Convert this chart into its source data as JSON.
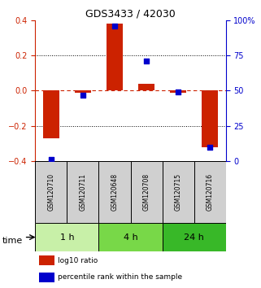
{
  "title": "GDS3433 / 42030",
  "samples": [
    "GSM120710",
    "GSM120711",
    "GSM120648",
    "GSM120708",
    "GSM120715",
    "GSM120716"
  ],
  "log10_ratio": [
    -0.27,
    -0.01,
    0.38,
    0.04,
    -0.01,
    -0.32
  ],
  "percentile": [
    1,
    47,
    96,
    71,
    49,
    10
  ],
  "time_groups": [
    {
      "label": "1 h",
      "cols": [
        0,
        1
      ],
      "color": "#c8f0a8"
    },
    {
      "label": "4 h",
      "cols": [
        2,
        3
      ],
      "color": "#78d848"
    },
    {
      "label": "24 h",
      "cols": [
        4,
        5
      ],
      "color": "#38b828"
    }
  ],
  "ylim_left": [
    -0.4,
    0.4
  ],
  "ylim_right": [
    0,
    100
  ],
  "yticks_left": [
    -0.4,
    -0.2,
    0.0,
    0.2,
    0.4
  ],
  "yticks_right": [
    0,
    25,
    50,
    75,
    100
  ],
  "bar_color": "#cc2200",
  "dot_color": "#0000cc",
  "hline_color": "#cc2200",
  "legend_bar": "log10 ratio",
  "legend_dot": "percentile rank within the sample",
  "xlabel": "time",
  "figsize": [
    3.21,
    3.54
  ],
  "dpi": 100
}
